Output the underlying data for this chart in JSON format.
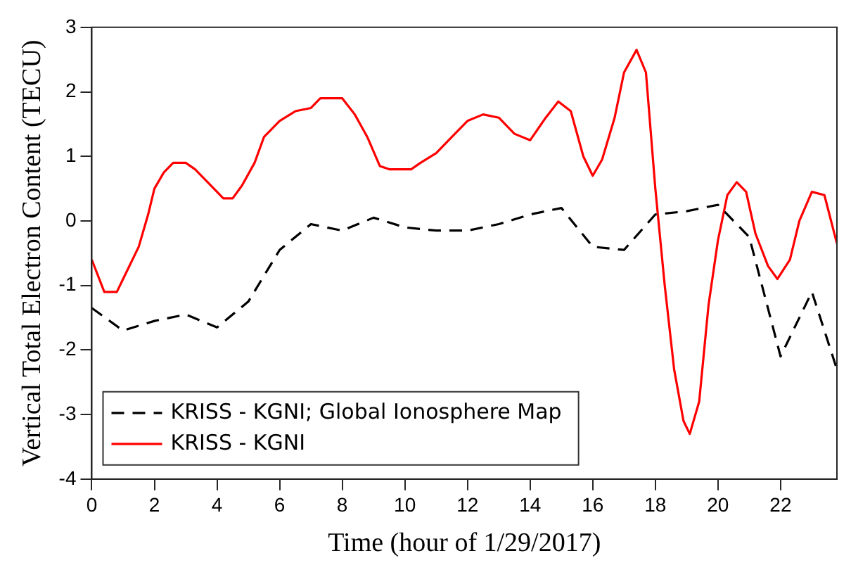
{
  "chart_data": {
    "type": "line",
    "xlabel": "Time (hour of 1/29/2017)",
    "ylabel": "Vertical Total Electron Content (TECU)",
    "xlim": [
      0,
      23.8
    ],
    "xticks": [
      0,
      2,
      4,
      6,
      8,
      10,
      12,
      14,
      16,
      18,
      20,
      22
    ],
    "ylim": [
      -4,
      3
    ],
    "yticks": [
      -4,
      -3,
      -2,
      -1,
      0,
      1,
      2,
      3
    ],
    "grid": false,
    "legend": "bottom left",
    "marker": "none",
    "series": [
      {
        "name": "KRISS - KGNI; Global Ionosphere Map",
        "color": "#000000",
        "line_style": "dashed",
        "x": [
          0,
          1,
          2,
          3,
          4,
          5,
          6,
          7,
          8,
          9,
          10,
          11,
          12,
          13,
          14,
          15,
          16,
          17,
          18,
          19,
          20,
          21,
          22,
          23,
          23.8
        ],
        "values": [
          -1.35,
          -1.7,
          -1.55,
          -1.45,
          -1.65,
          -1.25,
          -0.45,
          -0.05,
          -0.15,
          0.05,
          -0.1,
          -0.15,
          -0.15,
          -0.05,
          0.1,
          0.2,
          -0.4,
          -0.45,
          0.1,
          0.15,
          0.25,
          -0.25,
          -2.1,
          -1.1,
          -2.3
        ]
      },
      {
        "name": "KRISS - KGNI",
        "color": "#ff0000",
        "line_style": "solid",
        "x": [
          0,
          0.4,
          0.8,
          1,
          1.5,
          1.8,
          2,
          2.3,
          2.6,
          3,
          3.3,
          3.7,
          4,
          4.2,
          4.5,
          4.8,
          5.2,
          5.5,
          6,
          6.5,
          7,
          7.3,
          8,
          8.4,
          8.8,
          9.2,
          9.5,
          10.2,
          10.5,
          11,
          11.5,
          12,
          12.5,
          13,
          13.5,
          14,
          14.5,
          14.9,
          15.3,
          15.7,
          16,
          16.3,
          16.7,
          17,
          17.4,
          17.7,
          18,
          18.3,
          18.6,
          18.9,
          19.1,
          19.4,
          19.7,
          20,
          20.3,
          20.6,
          20.9,
          21.2,
          21.6,
          21.9,
          22.3,
          22.6,
          23,
          23.4,
          23.8
        ],
        "values": [
          -0.6,
          -1.1,
          -1.1,
          -0.9,
          -0.4,
          0.1,
          0.5,
          0.75,
          0.9,
          0.9,
          0.8,
          0.6,
          0.45,
          0.35,
          0.35,
          0.55,
          0.9,
          1.3,
          1.55,
          1.7,
          1.75,
          1.9,
          1.9,
          1.65,
          1.3,
          0.85,
          0.8,
          0.8,
          0.9,
          1.05,
          1.3,
          1.55,
          1.65,
          1.6,
          1.35,
          1.25,
          1.6,
          1.85,
          1.7,
          1.0,
          0.7,
          0.95,
          1.6,
          2.3,
          2.65,
          2.3,
          0.5,
          -1.0,
          -2.3,
          -3.1,
          -3.3,
          -2.8,
          -1.3,
          -0.3,
          0.4,
          0.6,
          0.45,
          -0.2,
          -0.7,
          -0.9,
          -0.6,
          0,
          0.45,
          0.4,
          -0.35
        ]
      }
    ]
  }
}
